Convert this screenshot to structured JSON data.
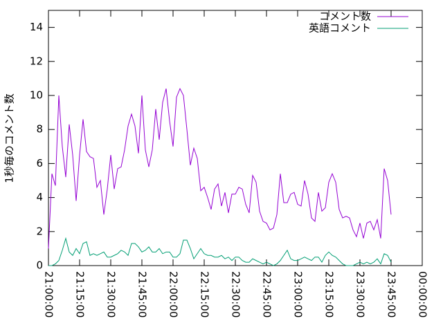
{
  "chart_data": {
    "type": "line",
    "ylabel": "1秒毎のコメント数",
    "x": [
      "21:00:00",
      "21:01:40",
      "21:03:20",
      "21:05:00",
      "21:06:40",
      "21:08:20",
      "21:10:00",
      "21:11:40",
      "21:13:20",
      "21:15:00",
      "21:16:40",
      "21:18:20",
      "21:20:00",
      "21:21:40",
      "21:23:20",
      "21:25:00",
      "21:26:40",
      "21:28:20",
      "21:30:00",
      "21:31:40",
      "21:33:20",
      "21:35:00",
      "21:36:40",
      "21:38:20",
      "21:40:00",
      "21:41:40",
      "21:43:20",
      "21:45:00",
      "21:46:40",
      "21:48:20",
      "21:50:00",
      "21:51:40",
      "21:53:20",
      "21:55:00",
      "21:56:40",
      "21:58:20",
      "22:00:00",
      "22:01:40",
      "22:03:20",
      "22:05:00",
      "22:06:40",
      "22:08:20",
      "22:10:00",
      "22:11:40",
      "22:13:20",
      "22:15:00",
      "22:16:40",
      "22:18:20",
      "22:20:00",
      "22:21:40",
      "22:23:20",
      "22:25:00",
      "22:26:40",
      "22:28:20",
      "22:30:00",
      "22:31:40",
      "22:33:20",
      "22:35:00",
      "22:36:40",
      "22:38:20",
      "22:40:00",
      "22:41:40",
      "22:43:20",
      "22:45:00",
      "22:46:40",
      "22:48:20",
      "22:50:00",
      "22:51:40",
      "22:53:20",
      "22:55:00",
      "22:56:40",
      "22:58:20",
      "23:00:00",
      "23:01:40",
      "23:03:20",
      "23:05:00",
      "23:06:40",
      "23:08:20",
      "23:10:00",
      "23:11:40",
      "23:13:20",
      "23:15:00",
      "23:16:40",
      "23:18:20",
      "23:20:00",
      "23:21:40",
      "23:23:20",
      "23:25:00",
      "23:26:40",
      "23:28:20",
      "23:30:00",
      "23:31:40",
      "23:33:20",
      "23:35:00",
      "23:36:40",
      "23:38:20",
      "23:40:00",
      "23:41:40",
      "23:43:20",
      "23:45:00"
    ],
    "series": [
      {
        "name": "コメント数",
        "color": "#9400d3",
        "values": [
          1.0,
          5.4,
          4.7,
          10.0,
          7.0,
          5.2,
          8.3,
          6.5,
          3.8,
          6.5,
          8.6,
          6.7,
          6.4,
          6.3,
          4.6,
          5.0,
          3.0,
          4.5,
          6.5,
          4.5,
          5.7,
          5.8,
          6.8,
          8.2,
          8.9,
          8.2,
          6.6,
          10.0,
          6.8,
          5.8,
          6.8,
          9.2,
          7.4,
          9.6,
          10.4,
          8.5,
          7.0,
          9.9,
          10.4,
          10.0,
          8.0,
          5.9,
          6.9,
          6.3,
          4.4,
          4.6,
          4.0,
          3.3,
          4.5,
          4.8,
          3.5,
          4.3,
          3.1,
          4.2,
          4.2,
          4.6,
          4.5,
          3.6,
          3.1,
          5.3,
          4.9,
          3.2,
          2.6,
          2.5,
          2.1,
          2.2,
          3.0,
          5.4,
          3.7,
          3.7,
          4.2,
          4.3,
          3.6,
          3.5,
          5.0,
          4.2,
          2.8,
          2.6,
          4.3,
          3.2,
          3.4,
          4.9,
          5.4,
          4.9,
          3.3,
          2.8,
          2.9,
          2.8,
          2.1,
          1.7,
          2.5,
          1.6,
          2.5,
          2.6,
          2.1,
          2.7,
          1.6,
          5.7,
          5.0,
          3.0
        ]
      },
      {
        "name": "英語コメント",
        "color": "#009e73",
        "values": [
          0,
          0,
          0.1,
          0.3,
          0.9,
          1.6,
          0.8,
          0.6,
          1.0,
          0.7,
          1.3,
          1.4,
          0.6,
          0.7,
          0.6,
          0.7,
          0.8,
          0.5,
          0.5,
          0.6,
          0.7,
          0.9,
          0.8,
          0.6,
          1.3,
          1.3,
          1.1,
          0.8,
          0.9,
          1.1,
          0.8,
          0.8,
          1.0,
          0.7,
          0.8,
          0.8,
          0.5,
          0.5,
          0.7,
          1.5,
          1.5,
          1.0,
          0.4,
          0.7,
          1.0,
          0.7,
          0.6,
          0.6,
          0.5,
          0.5,
          0.6,
          0.4,
          0.5,
          0.3,
          0.5,
          0.5,
          0.3,
          0.2,
          0.2,
          0.4,
          0.3,
          0.2,
          0.1,
          0.2,
          0.1,
          0,
          0.1,
          0.3,
          0.6,
          0.9,
          0.4,
          0.3,
          0.3,
          0.4,
          0.5,
          0.4,
          0.3,
          0.5,
          0.5,
          0.2,
          0.6,
          0.8,
          0.6,
          0.5,
          0.3,
          0.1,
          0,
          0,
          0,
          0.1,
          0.2,
          0.1,
          0.2,
          0.1,
          0.2,
          0.4,
          0.1,
          0.7,
          0.6,
          0.2
        ]
      }
    ],
    "xlim": [
      "21:00:00",
      "00:00:00"
    ],
    "xticks": [
      "21:00:00",
      "21:15:00",
      "21:30:00",
      "21:45:00",
      "22:00:00",
      "22:15:00",
      "22:30:00",
      "22:45:00",
      "23:00:00",
      "23:15:00",
      "23:30:00",
      "23:45:00",
      "00:00:00"
    ],
    "ylim": [
      0,
      15
    ],
    "yticks": [
      0,
      2,
      4,
      6,
      8,
      10,
      12,
      14
    ],
    "grid": false,
    "legend": "top-right"
  }
}
